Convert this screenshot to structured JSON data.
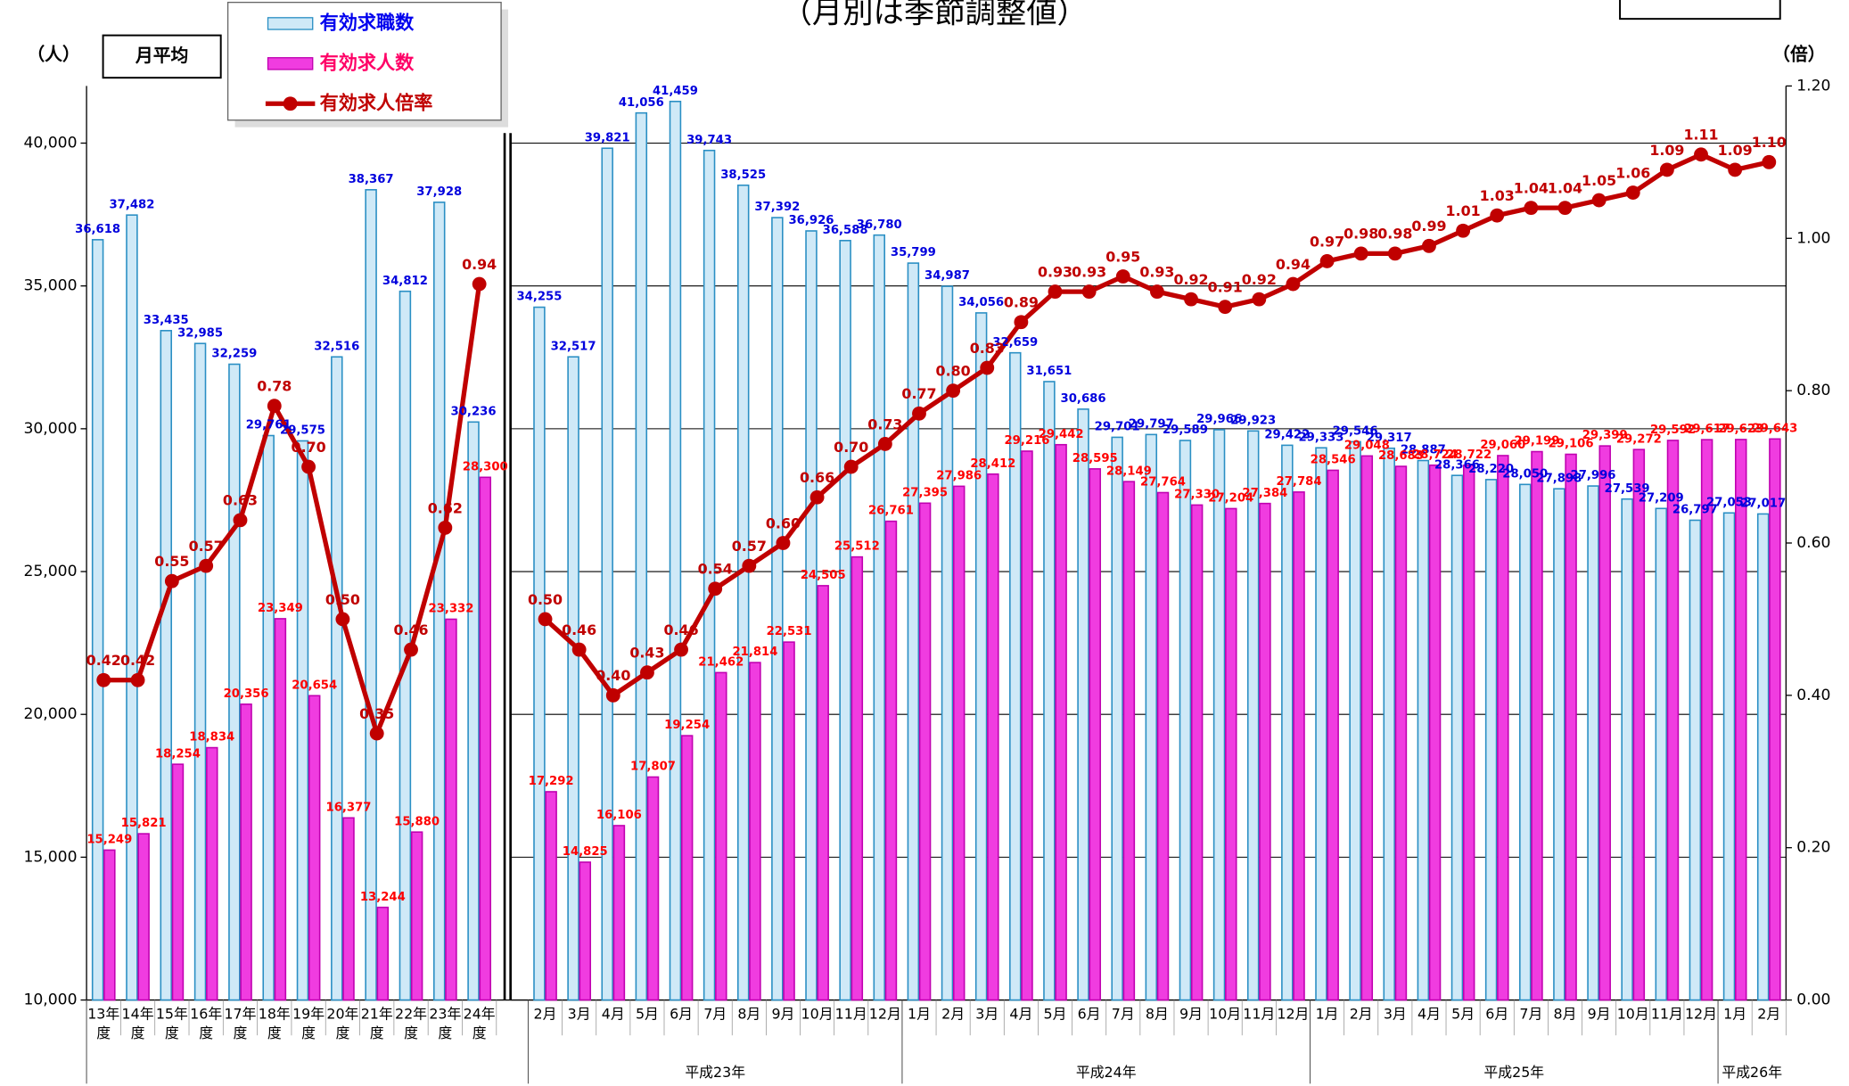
{
  "chart_data": {
    "type": "bar",
    "title": "（月別は季節調整値）",
    "y_label": "（人）",
    "y2_label": "（倍）",
    "annotation": "月平均",
    "groups": [
      {
        "name": null,
        "categories": [
          "13年度",
          "14年度",
          "15年度",
          "16年度",
          "17年度",
          "18年度",
          "19年度",
          "20年度",
          "21年度",
          "22年度",
          "23年度",
          "24年度"
        ]
      },
      {
        "name": "平成23年",
        "categories": [
          "2月",
          "3月",
          "4月",
          "5月",
          "6月",
          "7月",
          "8月",
          "9月",
          "10月",
          "11月",
          "12月"
        ]
      },
      {
        "name": "平成24年",
        "categories": [
          "1月",
          "2月",
          "3月",
          "4月",
          "5月",
          "6月",
          "7月",
          "8月",
          "9月",
          "10月",
          "11月",
          "12月"
        ]
      },
      {
        "name": "平成25年",
        "categories": [
          "1月",
          "2月",
          "3月",
          "4月",
          "5月",
          "6月",
          "7月",
          "8月",
          "9月",
          "10月",
          "11月",
          "12月"
        ]
      },
      {
        "name": "平成26年",
        "categories": [
          "1月",
          "2月"
        ]
      }
    ],
    "series": [
      {
        "name": "有効求職数",
        "type": "bar",
        "color": "#cfe9f7",
        "edge_color": "#2a8fc4",
        "label_color": "#0000dd",
        "values": [
          36618,
          37482,
          33435,
          32985,
          32259,
          29761,
          29575,
          32516,
          38367,
          34812,
          37928,
          30236,
          34255,
          32517,
          39821,
          41056,
          41459,
          39743,
          38525,
          37392,
          36926,
          36588,
          36780,
          35799,
          34987,
          34056,
          32659,
          31651,
          30686,
          29701,
          29797,
          29589,
          29966,
          29923,
          29422,
          29333,
          29546,
          29317,
          28887,
          28366,
          28220,
          28050,
          27898,
          27996,
          27539,
          27209,
          26797,
          27053,
          27017
        ],
        "value_labels": [
          "36,618",
          "37,482",
          "33,435",
          "32,985",
          "32,259",
          "29,761",
          "29,575",
          "32,516",
          "38,367",
          "34,812",
          "37,928",
          "30,236",
          "34,255",
          "32,517",
          "39,821",
          "41,056",
          "41,459",
          "39,743",
          "38,525",
          "37,392",
          "36,926",
          "36,588",
          "36,780",
          "35,799",
          "34,987",
          "34,056",
          "32,659",
          "31,651",
          "30,686",
          "29,701",
          "29,797",
          "29,589",
          "29,966",
          "29,923",
          "29,422",
          "29,333",
          "29,546",
          "29,317",
          "28,887",
          "28,366",
          "28,220",
          "28,050",
          "27,898",
          "27,996",
          "27,539",
          "27,209",
          "26,797",
          "27,053",
          "27,017"
        ]
      },
      {
        "name": "有効求人数",
        "type": "bar",
        "color": "#f03ce0",
        "edge_color": "#c000b0",
        "label_color": "#ff0000",
        "values": [
          15249,
          15821,
          18254,
          18834,
          20356,
          23349,
          20654,
          16377,
          13244,
          15880,
          23332,
          28300,
          17292,
          14825,
          16106,
          17807,
          19254,
          21462,
          21814,
          22531,
          24505,
          25512,
          26761,
          27395,
          27986,
          28412,
          29216,
          29442,
          28595,
          28149,
          27764,
          27330,
          27204,
          27384,
          27784,
          28546,
          29048,
          28683,
          28724,
          28722,
          29060,
          29199,
          29106,
          29399,
          29272,
          29592,
          29617,
          29623,
          29643
        ],
        "value_labels": [
          "15,249",
          "15,821",
          "18,254",
          "18,834",
          "20,356",
          "23,349",
          "20,654",
          "16,377",
          "13,244",
          "15,880",
          "23,332",
          "28,300",
          "17,292",
          "14,825",
          "16,106",
          "17,807",
          "19,254",
          "21,462",
          "21,814",
          "22,531",
          "24,505",
          "25,512",
          "26,761",
          "27,395",
          "27,986",
          "28,412",
          "29,216",
          "29,442",
          "28,595",
          "28,149",
          "27,764",
          "27,330",
          "27,204",
          "27,384",
          "27,784",
          "28,546",
          "29,048",
          "28,683",
          "28,724",
          "28,722",
          "29,060",
          "29,199",
          "29,106",
          "29,399",
          "29,272",
          "29,592",
          "29,617",
          "29,623",
          "29,643"
        ]
      },
      {
        "name": "有効求人倍率",
        "type": "line",
        "axis": "y2",
        "color": "#c00000",
        "label_color": "#c00000",
        "values": [
          0.42,
          0.42,
          0.55,
          0.57,
          0.63,
          0.78,
          0.7,
          0.5,
          0.35,
          0.46,
          0.62,
          0.94,
          0.5,
          0.46,
          0.4,
          0.43,
          0.46,
          0.54,
          0.57,
          0.6,
          0.66,
          0.7,
          0.73,
          0.77,
          0.8,
          0.83,
          0.89,
          0.93,
          0.93,
          0.95,
          0.93,
          0.92,
          0.91,
          0.92,
          0.94,
          0.97,
          0.98,
          0.98,
          0.99,
          1.01,
          1.03,
          1.04,
          1.04,
          1.05,
          1.06,
          1.09,
          1.11,
          1.09,
          1.1
        ],
        "value_labels": [
          "0.42",
          "0.42",
          "0.55",
          "0.57",
          "0.63",
          "0.78",
          "0.70",
          "0.50",
          "0.35",
          "0.46",
          "0.62",
          "0.94",
          "0.50",
          "0.46",
          "0.40",
          "0.43",
          "0.46",
          "0.54",
          "0.57",
          "0.60",
          "0.66",
          "0.70",
          "0.73",
          "0.77",
          "0.80",
          "0.83",
          "0.89",
          "0.93",
          "0.93",
          "0.95",
          "0.93",
          "0.92",
          "0.91",
          "0.92",
          "0.94",
          "0.97",
          "0.98",
          "0.98",
          "0.99",
          "1.01",
          "1.03",
          "1.04",
          "1.04",
          "1.05",
          "1.06",
          "1.09",
          "1.11",
          "1.09",
          "1.10"
        ]
      }
    ],
    "ylim": [
      10000,
      42000
    ],
    "yticks": [
      {
        "value": 10000,
        "label": "10,000"
      },
      {
        "value": 15000,
        "label": "15,000"
      },
      {
        "value": 20000,
        "label": "20,000"
      },
      {
        "value": 25000,
        "label": "25,000"
      },
      {
        "value": 30000,
        "label": "30,000"
      },
      {
        "value": 35000,
        "label": "35,000"
      },
      {
        "value": 40000,
        "label": "40,000"
      }
    ],
    "y2lim": [
      0,
      1.2
    ],
    "y2ticks": [
      {
        "value": 0,
        "label": "0.00"
      },
      {
        "value": 0.2,
        "label": "0.20"
      },
      {
        "value": 0.4,
        "label": "0.40"
      },
      {
        "value": 0.6,
        "label": "0.60"
      },
      {
        "value": 0.8,
        "label": "0.80"
      },
      {
        "value": 1.0,
        "label": "1.00"
      },
      {
        "value": 1.2,
        "label": "1.20"
      }
    ],
    "grid": true
  }
}
